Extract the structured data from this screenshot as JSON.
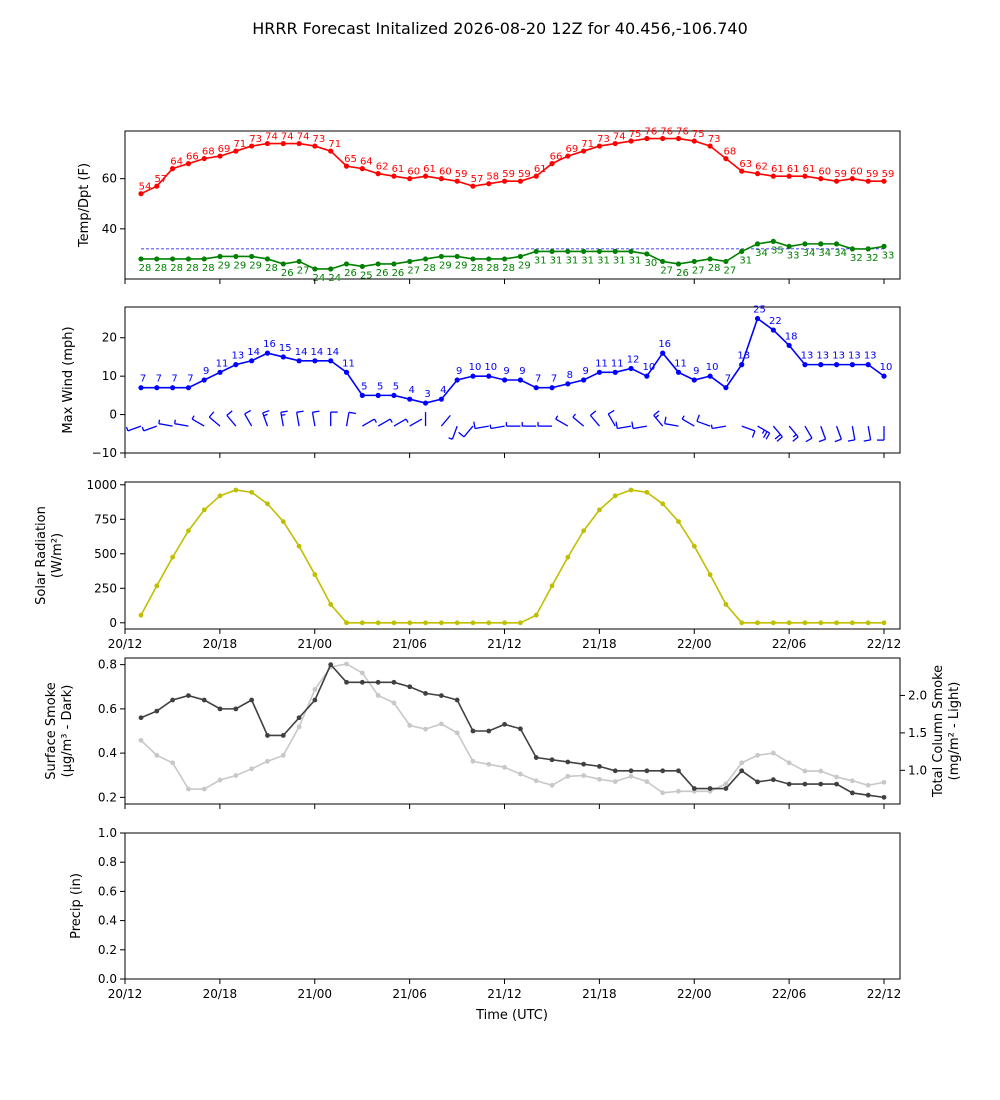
{
  "figure_title": "HRRR Forecast Initalized 2026-08-20 12Z for 40.456,-106.740",
  "colors": {
    "temp": "#ff0000",
    "dewpoint": "#008000",
    "wind": "#0000ff",
    "solar": "#bfbf00",
    "smoke_surface": "#404040",
    "smoke_column": "#c8c8c8"
  },
  "chart_data": [
    {
      "type": "line",
      "panel": "temp_dpt",
      "xlabel": "",
      "ylabel": "Temp/Dpt (F)",
      "hours": [
        1,
        2,
        3,
        4,
        5,
        6,
        7,
        8,
        9,
        10,
        11,
        12,
        13,
        14,
        15,
        16,
        17,
        18,
        19,
        20,
        21,
        22,
        23,
        24,
        25,
        26,
        27,
        28,
        29,
        30,
        31,
        32,
        33,
        34,
        35,
        36,
        37,
        38,
        39,
        40,
        41,
        42,
        43,
        44,
        45,
        46,
        47,
        48
      ],
      "yticks": [
        40,
        60
      ],
      "ylim": [
        20,
        79
      ],
      "hline": 32,
      "series": [
        {
          "key": "temp",
          "values": [
            54,
            57,
            64,
            66,
            68,
            69,
            71,
            73,
            74,
            74,
            74,
            73,
            71,
            65,
            64,
            62,
            61,
            60,
            61,
            60,
            59,
            57,
            58,
            59,
            59,
            61,
            66,
            69,
            71,
            73,
            74,
            75,
            76,
            76,
            76,
            75,
            73,
            68,
            63,
            62,
            61,
            61,
            61,
            60,
            59,
            60,
            59,
            59
          ]
        },
        {
          "key": "dewpoint",
          "values": [
            28,
            28,
            28,
            28,
            28,
            29,
            29,
            29,
            28,
            26,
            27,
            24,
            24,
            26,
            25,
            26,
            26,
            27,
            28,
            29,
            29,
            28,
            28,
            28,
            29,
            31,
            31,
            31,
            31,
            31,
            31,
            31,
            30,
            27,
            26,
            27,
            28,
            27,
            31,
            34,
            35,
            33,
            34,
            34,
            34,
            32,
            32,
            33
          ]
        }
      ]
    },
    {
      "type": "line",
      "panel": "wind",
      "ylabel": "Max Wind (mph)",
      "yticks": [
        -10,
        0,
        10,
        20
      ],
      "ylim": [
        -10,
        28
      ],
      "values": [
        7,
        7,
        7,
        7,
        9,
        11,
        13,
        14,
        16,
        15,
        14,
        14,
        14,
        11,
        5,
        5,
        5,
        4,
        3,
        4,
        9,
        10,
        10,
        9,
        9,
        7,
        7,
        8,
        9,
        11,
        11,
        12,
        10,
        16,
        11,
        9,
        10,
        7,
        13,
        25,
        22,
        18,
        13,
        13,
        13,
        13,
        13,
        10
      ],
      "barbs_direction_deg": [
        250,
        250,
        280,
        280,
        300,
        310,
        320,
        330,
        340,
        350,
        350,
        350,
        0,
        10,
        60,
        60,
        60,
        60,
        0,
        40,
        200,
        220,
        260,
        260,
        270,
        270,
        270,
        300,
        310,
        320,
        330,
        260,
        260,
        320,
        280,
        300,
        290,
        260,
        110,
        120,
        140,
        140,
        150,
        160,
        160,
        170,
        170,
        180
      ]
    },
    {
      "type": "line",
      "panel": "solar",
      "ylabel": "Solar Radiation",
      "ylabel_unit": "(W/m²)",
      "yticks": [
        0,
        250,
        500,
        750,
        1000
      ],
      "ylim": [
        -45,
        1020
      ],
      "values": [
        55,
        268,
        475,
        667,
        818,
        920,
        962,
        945,
        862,
        733,
        555,
        349,
        133,
        0,
        0,
        0,
        0,
        0,
        0,
        0,
        0,
        0,
        0,
        0,
        0,
        55,
        268,
        475,
        667,
        818,
        920,
        962,
        945,
        862,
        733,
        555,
        349,
        133,
        0,
        0,
        0,
        0,
        0,
        0,
        0,
        0,
        0,
        0
      ],
      "xticks": [
        "20/12",
        "20/18",
        "21/00",
        "21/06",
        "21/12",
        "21/18",
        "22/00",
        "22/06",
        "22/12"
      ]
    },
    {
      "type": "line",
      "panel": "smoke",
      "ylabel_left": "Surface Smoke",
      "ylabel_left_unit": "(μg/m³ - Dark)",
      "ylabel_right": "Total Column Smoke",
      "ylabel_right_unit": "(mg/m² - Light)",
      "yticks_left": [
        0.2,
        0.4,
        0.6,
        0.8
      ],
      "ylim_left": [
        0.17,
        0.83
      ],
      "yticks_right": [
        1.0,
        1.5,
        2.0
      ],
      "ylim_right": [
        0.55,
        2.5
      ],
      "surface": [
        0.56,
        0.59,
        0.64,
        0.66,
        0.64,
        0.6,
        0.6,
        0.64,
        0.48,
        0.48,
        0.56,
        0.64,
        0.8,
        0.72,
        0.72,
        0.72,
        0.72,
        0.7,
        0.67,
        0.66,
        0.64,
        0.5,
        0.5,
        0.53,
        0.51,
        0.38,
        0.37,
        0.36,
        0.35,
        0.34,
        0.32,
        0.32,
        0.32,
        0.32,
        0.32,
        0.24,
        0.24,
        0.24,
        0.32,
        0.27,
        0.28,
        0.26,
        0.26,
        0.26,
        0.26,
        0.22,
        0.21,
        0.2
      ],
      "column": [
        1.4,
        1.2,
        1.1,
        0.75,
        0.75,
        0.87,
        0.93,
        1.02,
        1.12,
        1.2,
        1.58,
        2.08,
        2.38,
        2.42,
        2.3,
        2.0,
        1.9,
        1.6,
        1.55,
        1.62,
        1.5,
        1.12,
        1.08,
        1.04,
        0.95,
        0.86,
        0.8,
        0.92,
        0.93,
        0.88,
        0.85,
        0.92,
        0.85,
        0.7,
        0.72,
        0.72,
        0.72,
        0.82,
        1.1,
        1.2,
        1.23,
        1.1,
        0.99,
        0.99,
        0.91,
        0.86,
        0.8,
        0.84
      ]
    },
    {
      "type": "line",
      "panel": "precip",
      "xlabel": "Time (UTC)",
      "ylabel": "Precip (in)",
      "yticks": [
        0.0,
        0.2,
        0.4,
        0.6,
        0.8,
        1.0
      ],
      "yticks_labels": [
        "0.0",
        "0.2",
        "0.4",
        "0.6",
        "0.8",
        "1.0"
      ],
      "ylim": [
        0,
        1
      ],
      "values": [],
      "xticks": [
        "20/12",
        "20/18",
        "21/00",
        "21/06",
        "21/12",
        "21/18",
        "22/00",
        "22/06",
        "22/12"
      ]
    }
  ]
}
